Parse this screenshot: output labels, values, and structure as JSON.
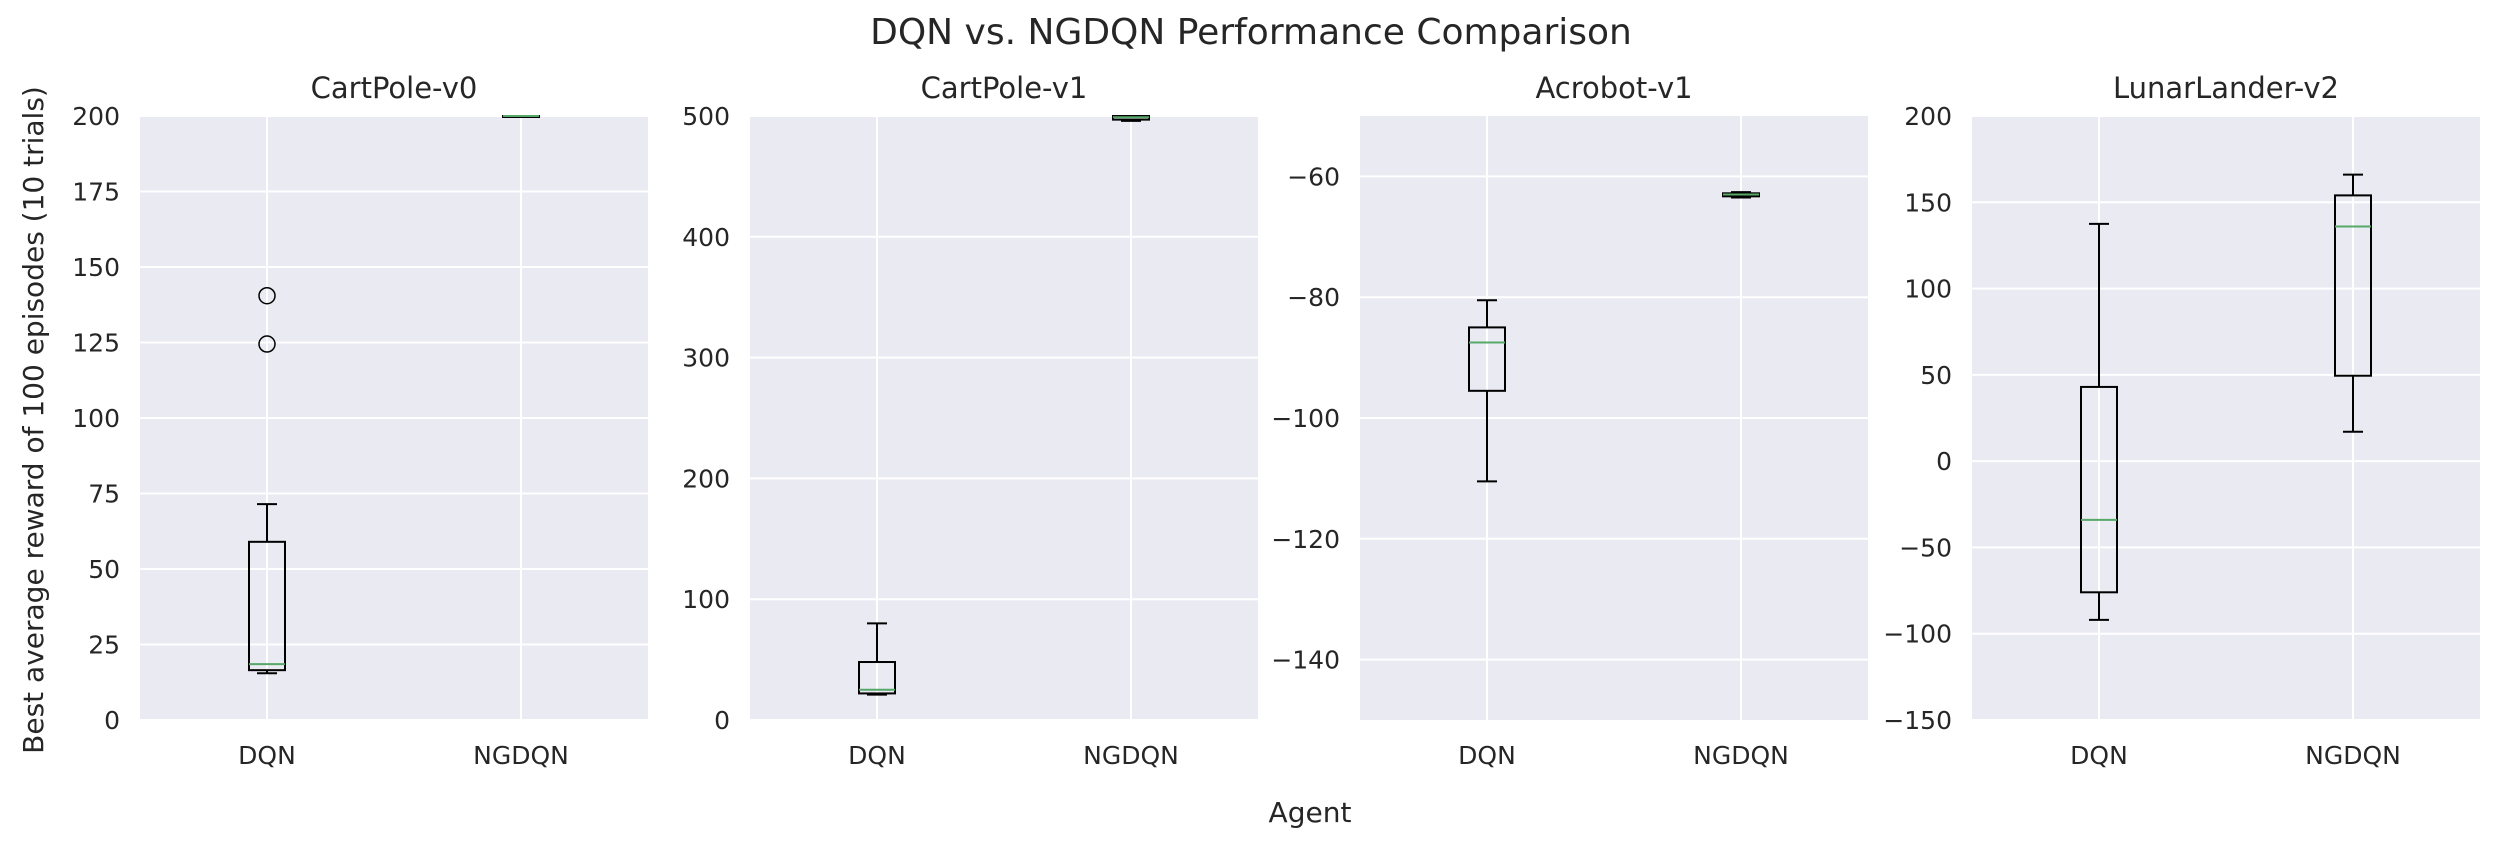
{
  "figure": {
    "suptitle": "DQN vs. NGDQN Performance Comparison",
    "supxlabel": "Agent",
    "supylabel": "Best average reward of 100 episodes (10 trials)"
  },
  "colors": {
    "panel_bg": "#eaeaf2",
    "grid": "#ffffff",
    "box": "#000000",
    "median": "#55a868"
  },
  "chart_data": [
    {
      "type": "box",
      "title": "CartPole-v0",
      "categories": [
        "DQN",
        "NGDQN"
      ],
      "ylim": [
        0,
        200
      ],
      "yticks": [
        0,
        25,
        50,
        75,
        100,
        125,
        150,
        175,
        200
      ],
      "grid": true,
      "boxes": [
        {
          "name": "DQN",
          "whisker_low": 15.5,
          "q1": 16.5,
          "median": 18.5,
          "q3": 59,
          "whisker_high": 71.5,
          "outliers": [
            124.5,
            140.5
          ]
        },
        {
          "name": "NGDQN",
          "whisker_low": 200,
          "q1": 200,
          "median": 200,
          "q3": 200,
          "whisker_high": 200,
          "outliers": []
        }
      ]
    },
    {
      "type": "box",
      "title": "CartPole-v1",
      "categories": [
        "DQN",
        "NGDQN"
      ],
      "ylim": [
        0,
        500
      ],
      "yticks": [
        0,
        100,
        200,
        300,
        400,
        500
      ],
      "grid": true,
      "boxes": [
        {
          "name": "DQN",
          "whisker_low": 21,
          "q1": 22,
          "median": 25,
          "q3": 48,
          "whisker_high": 80,
          "outliers": []
        },
        {
          "name": "NGDQN",
          "whisker_low": 496,
          "q1": 497,
          "median": 499,
          "q3": 500,
          "whisker_high": 500,
          "outliers": []
        }
      ]
    },
    {
      "type": "box",
      "title": "Acrobot-v1",
      "categories": [
        "DQN",
        "NGDQN"
      ],
      "ylim": [
        -150,
        -50
      ],
      "yticks": [
        -140,
        -120,
        -100,
        -80,
        -60
      ],
      "grid": true,
      "boxes": [
        {
          "name": "DQN",
          "whisker_low": -110.5,
          "q1": -95.5,
          "median": -87.5,
          "q3": -85,
          "whisker_high": -80.5,
          "outliers": []
        },
        {
          "name": "NGDQN",
          "whisker_low": -63.5,
          "q1": -63.3,
          "median": -63,
          "q3": -62.8,
          "whisker_high": -62.6,
          "outliers": []
        }
      ]
    },
    {
      "type": "box",
      "title": "LunarLander-v2",
      "categories": [
        "DQN",
        "NGDQN"
      ],
      "ylim": [
        -150,
        200
      ],
      "yticks": [
        -150,
        -100,
        -50,
        0,
        50,
        100,
        150,
        200
      ],
      "grid": true,
      "boxes": [
        {
          "name": "DQN",
          "whisker_low": -92,
          "q1": -76,
          "median": -34,
          "q3": 43,
          "whisker_high": 137.5,
          "outliers": []
        },
        {
          "name": "NGDQN",
          "whisker_low": 17,
          "q1": 49.5,
          "median": 136,
          "q3": 154,
          "whisker_high": 166,
          "outliers": []
        }
      ]
    }
  ]
}
